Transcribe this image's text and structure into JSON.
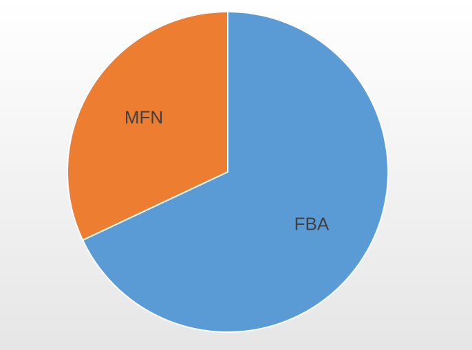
{
  "chart_data": {
    "type": "pie",
    "categories": [
      "FBA",
      "MFN"
    ],
    "values": [
      68,
      32
    ],
    "colors": [
      "#5b9bd5",
      "#ed7d31"
    ]
  }
}
